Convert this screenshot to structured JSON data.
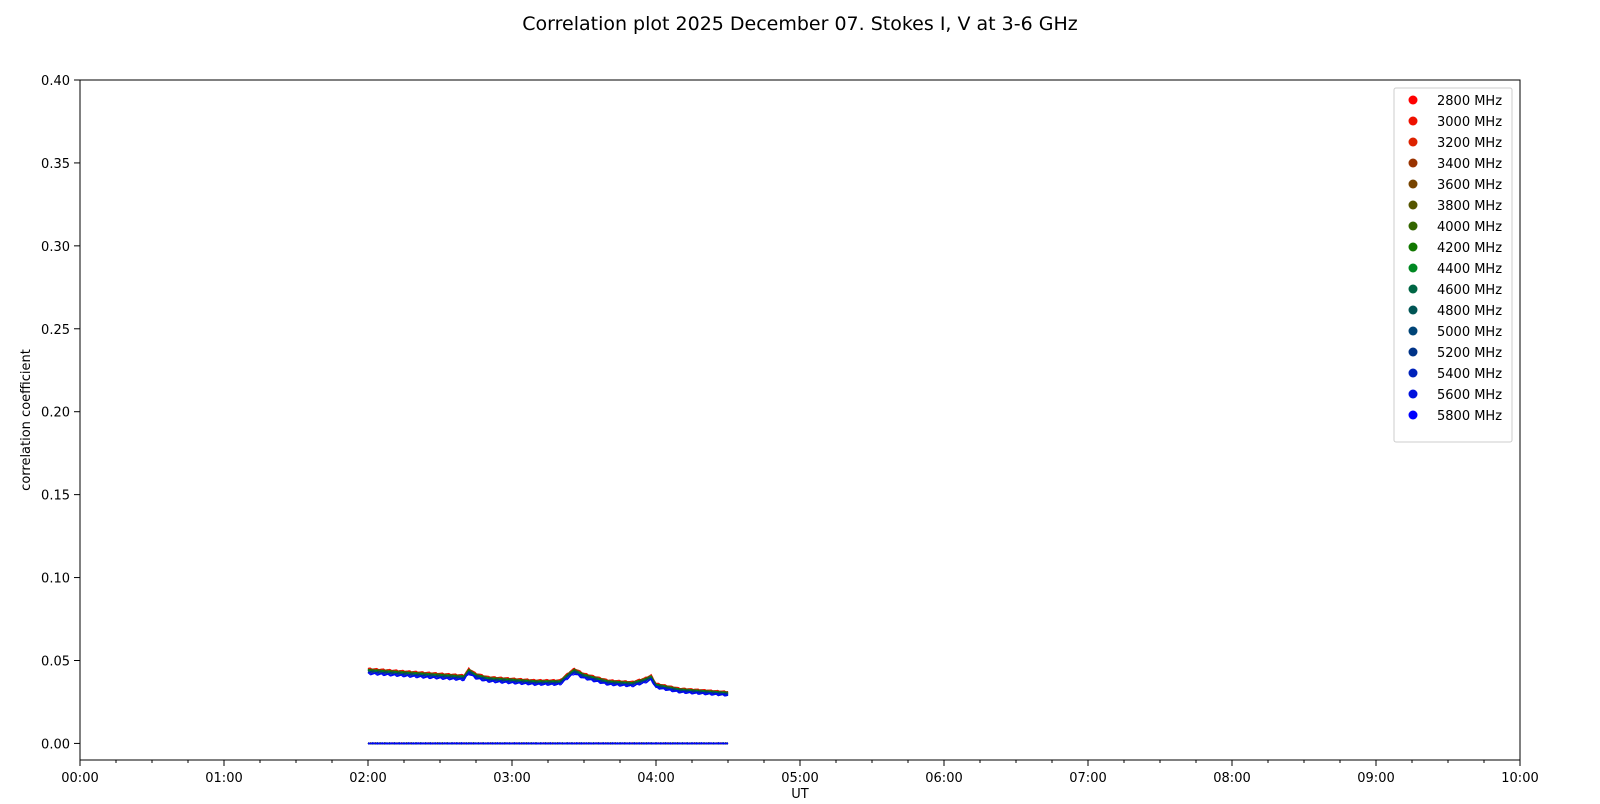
{
  "chart_data": {
    "type": "line",
    "title": "Correlation plot 2025 December 07. Stokes I, V at 3-6 GHz",
    "xlabel": "UT",
    "ylabel": "correlation coefficient",
    "xlim": [
      "00:00",
      "10:00"
    ],
    "ylim": [
      -0.01,
      0.4
    ],
    "x_ticks": [
      "00:00",
      "01:00",
      "02:00",
      "03:00",
      "04:00",
      "05:00",
      "06:00",
      "07:00",
      "08:00",
      "09:00",
      "10:00"
    ],
    "y_ticks": [
      "0.00",
      "0.05",
      "0.10",
      "0.15",
      "0.20",
      "0.25",
      "0.30",
      "0.35",
      "0.40"
    ],
    "grid": false,
    "legend_position": "top-right",
    "stokes_i_profile": {
      "times": [
        "02:00",
        "02:10",
        "02:20",
        "02:30",
        "02:40",
        "02:42",
        "02:45",
        "02:50",
        "03:00",
        "03:10",
        "03:20",
        "03:24",
        "03:26",
        "03:30",
        "03:40",
        "03:50",
        "03:55",
        "03:58",
        "04:00",
        "04:10",
        "04:20",
        "04:30"
      ],
      "base_values": [
        0.045,
        0.044,
        0.043,
        0.042,
        0.041,
        0.045,
        0.042,
        0.04,
        0.039,
        0.038,
        0.038,
        0.043,
        0.045,
        0.042,
        0.038,
        0.037,
        0.039,
        0.041,
        0.036,
        0.033,
        0.032,
        0.031
      ]
    },
    "stokes_v_level": 0.0,
    "series": [
      {
        "name": "2800 MHz",
        "color": "#ff0000",
        "offset": 0.0
      },
      {
        "name": "3000 MHz",
        "color": "#ee1100",
        "offset": -0.0005
      },
      {
        "name": "3200 MHz",
        "color": "#dd2200",
        "offset": -0.001
      },
      {
        "name": "3400 MHz",
        "color": "#993300",
        "offset": -0.0015
      },
      {
        "name": "3600 MHz",
        "color": "#774400",
        "offset": -0.002
      },
      {
        "name": "3800 MHz",
        "color": "#555500",
        "offset": -0.0025
      },
      {
        "name": "4000 MHz",
        "color": "#336600",
        "offset": -0.003
      },
      {
        "name": "4200 MHz",
        "color": "#117700",
        "offset": -0.0035
      },
      {
        "name": "4400 MHz",
        "color": "#008822",
        "offset": -0.004
      },
      {
        "name": "4600 MHz",
        "color": "#006644",
        "offset": -0.005
      },
      {
        "name": "4800 MHz",
        "color": "#005555",
        "offset": -0.006
      },
      {
        "name": "5000 MHz",
        "color": "#004477",
        "offset": -0.007
      },
      {
        "name": "5200 MHz",
        "color": "#003388",
        "offset": -0.008
      },
      {
        "name": "5400 MHz",
        "color": "#0022bb",
        "offset": -0.009
      },
      {
        "name": "5600 MHz",
        "color": "#0011dd",
        "offset": -0.01
      },
      {
        "name": "5800 MHz",
        "color": "#0000ff",
        "offset": -0.011
      }
    ]
  }
}
